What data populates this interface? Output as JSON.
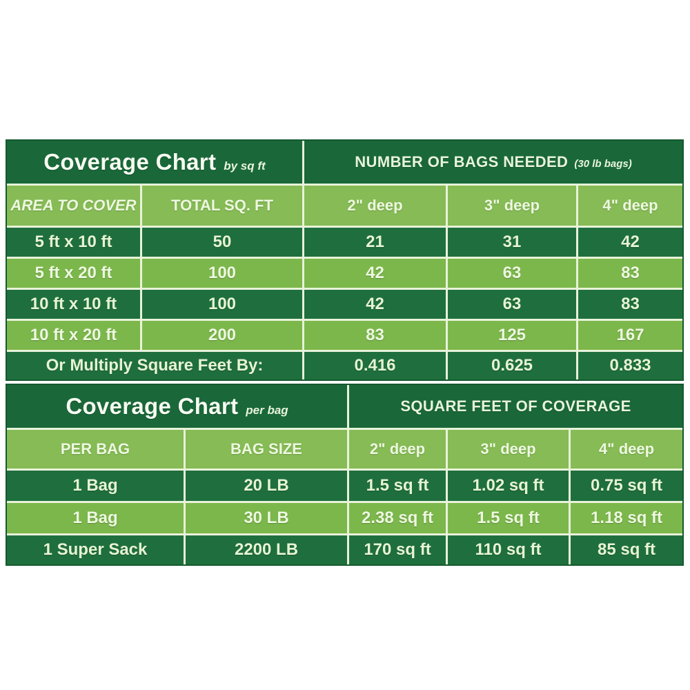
{
  "colors": {
    "page_background": "#ffffff",
    "title_bar_green": "#1a683a",
    "dark_row_green": "#1f6f3e",
    "header_row_green": "#86bb55",
    "light_row_green": "#7cb74b",
    "divider": "#e9f3da",
    "text": "#edf7e0"
  },
  "chart_data": [
    {
      "type": "table",
      "title": "Coverage Chart",
      "subtitle": "by sq ft",
      "section_header": "NUMBER OF BAGS NEEDED",
      "section_note": "(30 lb bags)",
      "columns": [
        "AREA TO COVER",
        "TOTAL SQ. FT",
        "2\" deep",
        "3\" deep",
        "4\" deep"
      ],
      "rows": [
        [
          "5 ft x 10 ft",
          "50",
          "21",
          "31",
          "42"
        ],
        [
          "5 ft x 20 ft",
          "100",
          "42",
          "63",
          "83"
        ],
        [
          "10 ft x 10 ft",
          "100",
          "42",
          "63",
          "83"
        ],
        [
          "10 ft x 20 ft",
          "200",
          "83",
          "125",
          "167"
        ]
      ],
      "footer": {
        "label": "Or Multiply Square Feet By:",
        "values": [
          "0.416",
          "0.625",
          "0.833"
        ]
      }
    },
    {
      "type": "table",
      "title": "Coverage Chart",
      "subtitle": "per bag",
      "section_header": "SQUARE FEET OF COVERAGE",
      "columns": [
        "PER BAG",
        "BAG SIZE",
        "2\" deep",
        "3\" deep",
        "4\" deep"
      ],
      "rows": [
        [
          "1 Bag",
          "20 LB",
          "1.5 sq ft",
          "1.02 sq ft",
          "0.75 sq ft"
        ],
        [
          "1 Bag",
          "30 LB",
          "2.38 sq ft",
          "1.5 sq ft",
          "1.18 sq ft"
        ],
        [
          "1 Super Sack",
          "2200 LB",
          "170 sq ft",
          "110 sq ft",
          "85 sq ft"
        ]
      ]
    }
  ]
}
